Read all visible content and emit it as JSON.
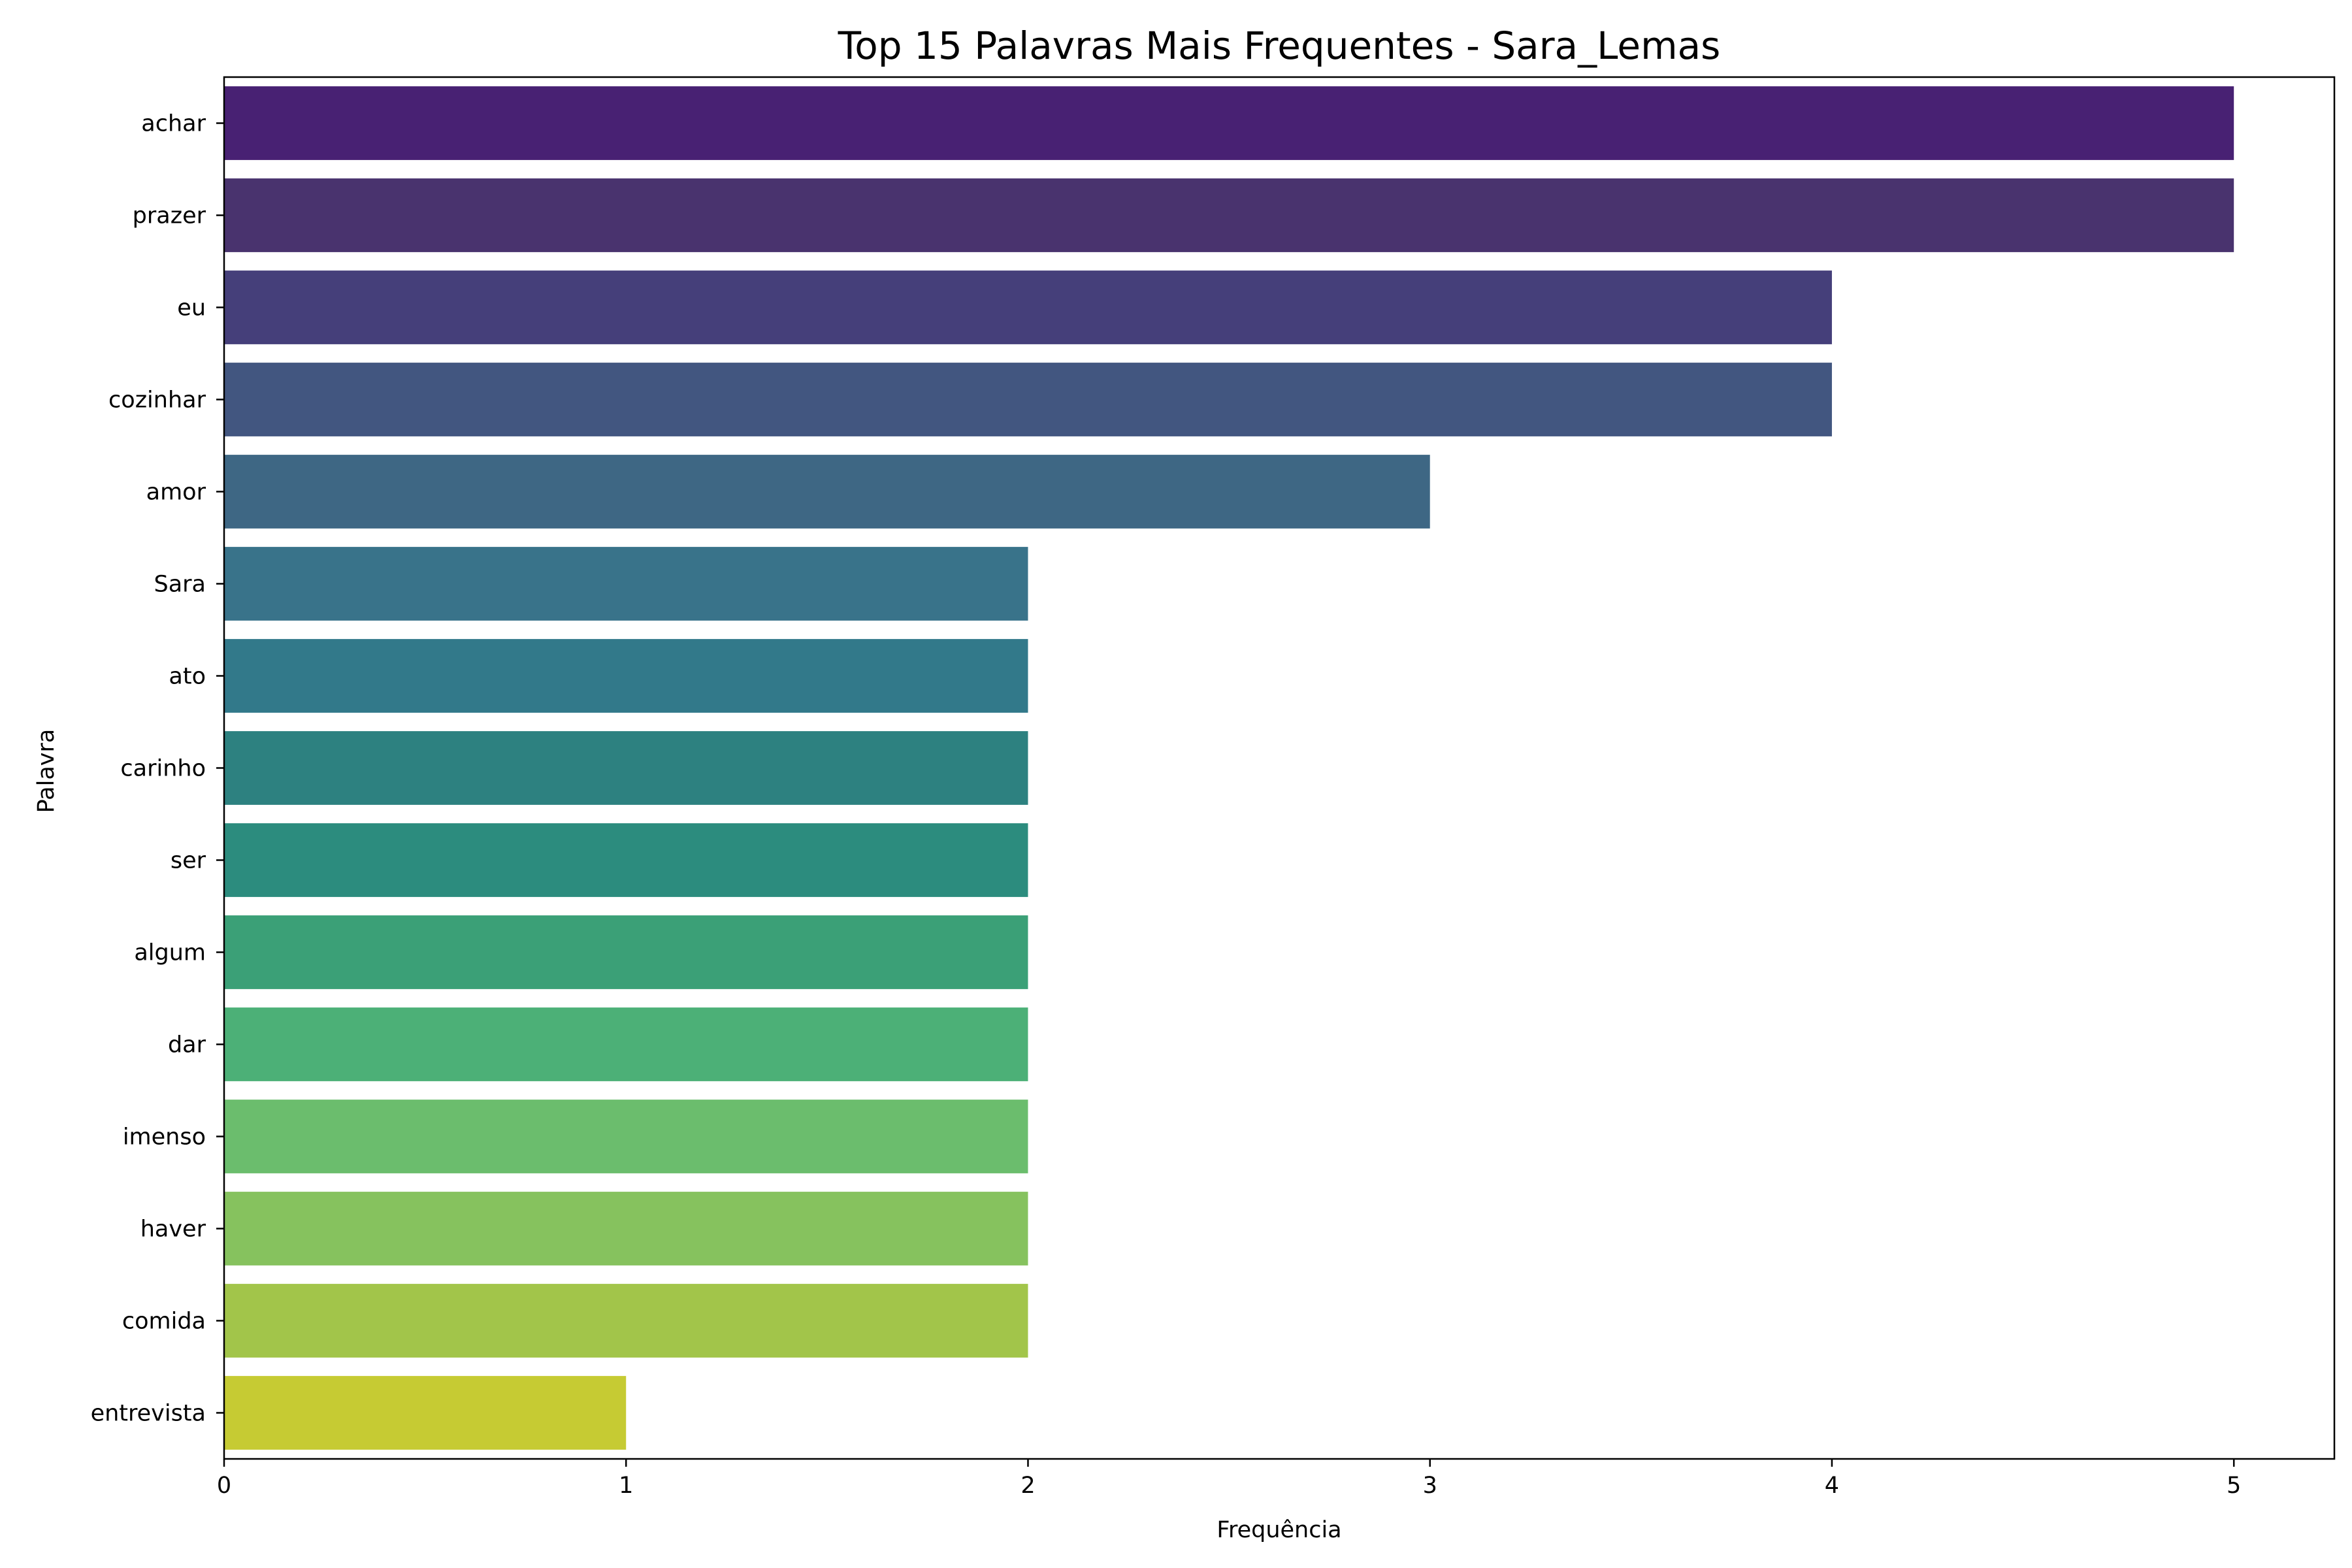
{
  "chart_data": {
    "type": "bar",
    "orientation": "horizontal",
    "title": "Top 15 Palavras Mais Frequentes - Sara_Lemas",
    "xlabel": "Frequência",
    "ylabel": "Palavra",
    "categories": [
      "achar",
      "prazer",
      "eu",
      "cozinhar",
      "amor",
      "Sara",
      "ato",
      "carinho",
      "ser",
      "algum",
      "dar",
      "imenso",
      "haver",
      "comida",
      "entrevista"
    ],
    "values": [
      5,
      5,
      4,
      4,
      3,
      2,
      2,
      2,
      2,
      2,
      2,
      2,
      2,
      2,
      1
    ],
    "xlim": [
      0,
      5.25
    ],
    "xticks": [
      0,
      1,
      2,
      3,
      4,
      5
    ],
    "grid": false,
    "legend": "none",
    "colors": [
      "#482173",
      "#49336e",
      "#453f7a",
      "#425680",
      "#3e6784",
      "#39738a",
      "#32798a",
      "#2d8180",
      "#2c8c7e",
      "#3ba077",
      "#4cb077",
      "#6bbd6d",
      "#86c25e",
      "#a2c54a",
      "#c6cb33"
    ]
  }
}
